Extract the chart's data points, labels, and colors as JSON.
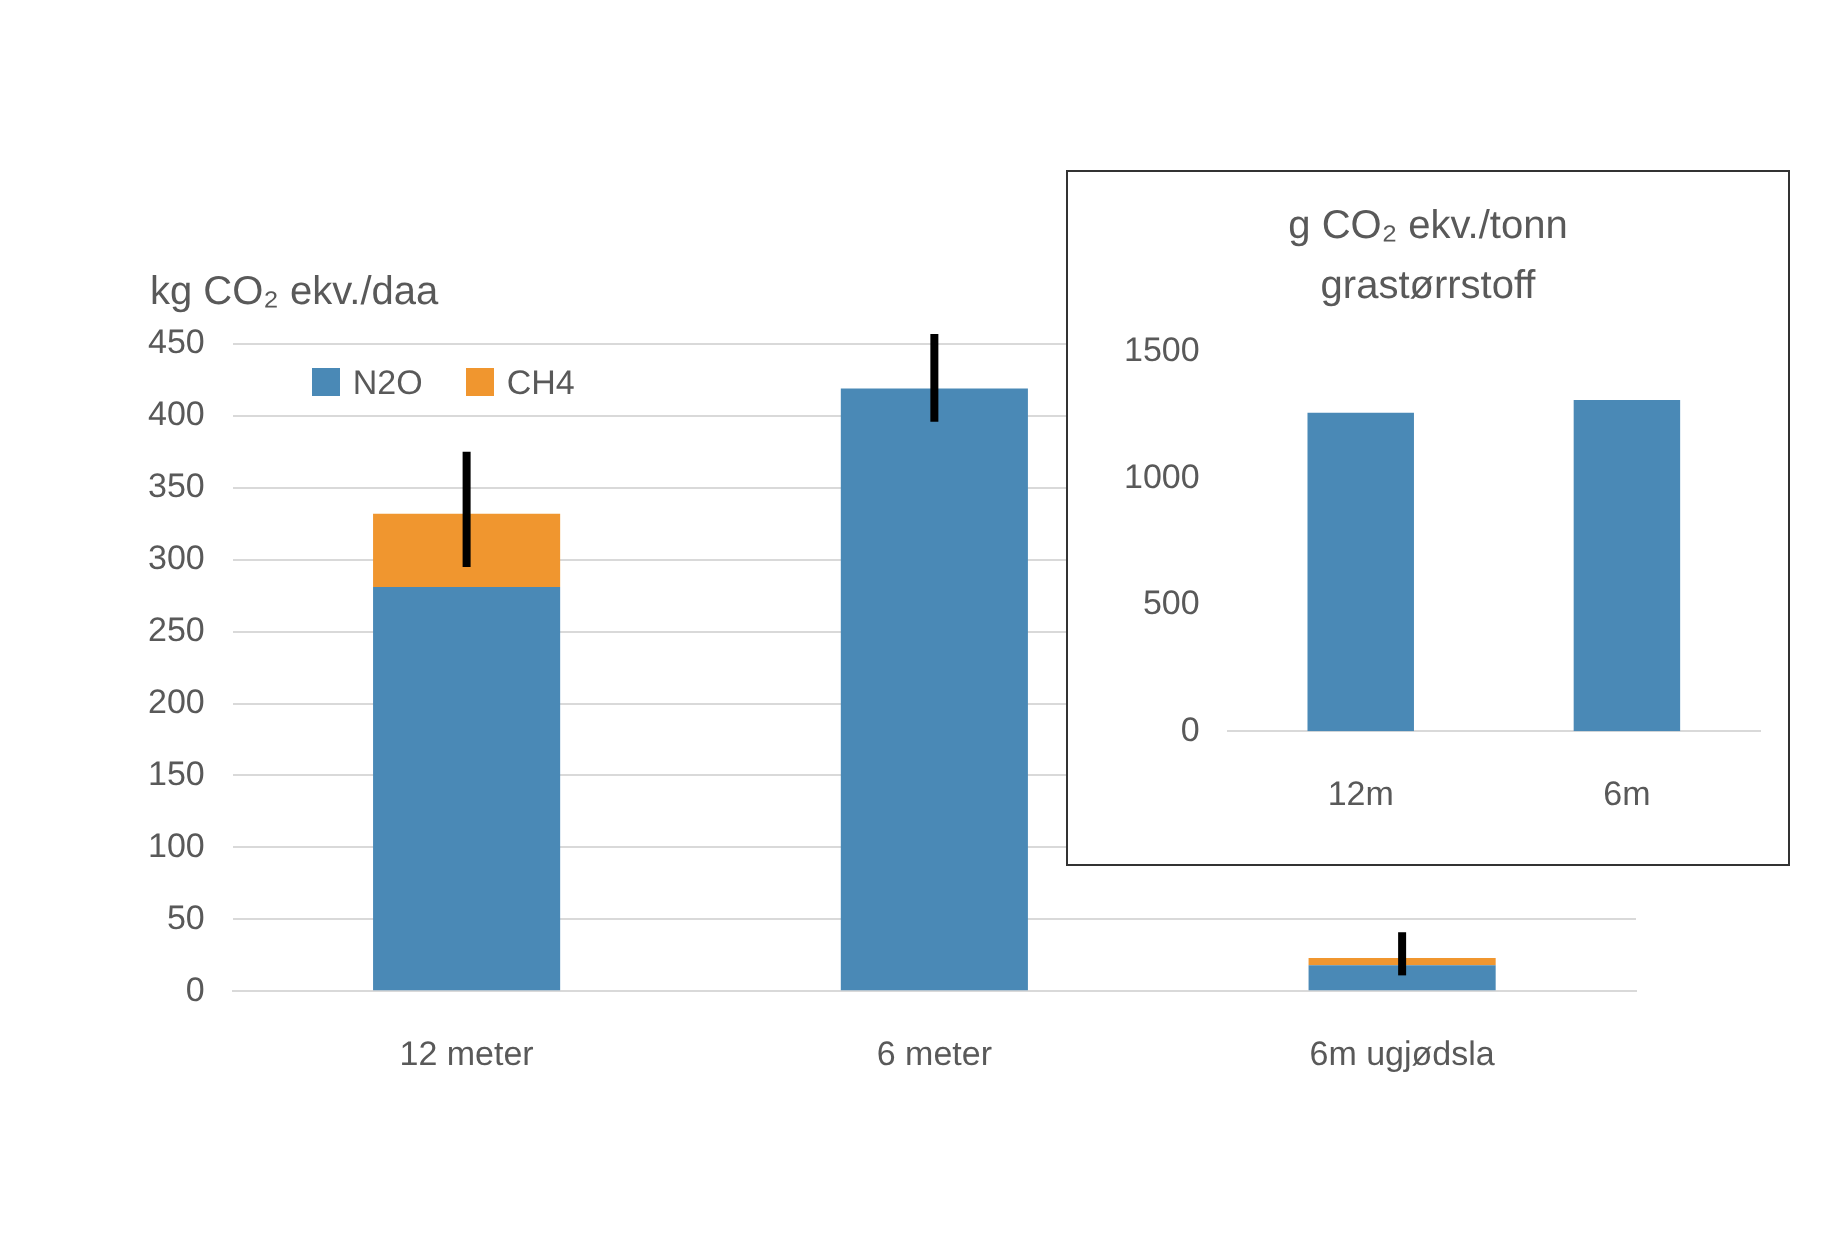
{
  "chart_data": [
    {
      "type": "bar",
      "ylabel": "kg CO₂ ekv./daa",
      "categories": [
        "12 meter",
        "6 meter",
        "6m ugjødsla"
      ],
      "stacked": true,
      "series": [
        {
          "name": "N2O",
          "color": "#4a89b6",
          "values": [
            281,
            419,
            18
          ]
        },
        {
          "name": "CH4",
          "color": "#f0962f",
          "values": [
            51,
            0,
            5
          ],
          "errors": [
            [
              295,
              375
            ],
            [
              396,
              457
            ],
            [
              11,
              41
            ]
          ]
        }
      ],
      "ylim": [
        0,
        450
      ],
      "yticks": [
        0,
        50,
        100,
        150,
        200,
        250,
        300,
        350,
        400,
        450
      ],
      "grid": "y",
      "legend": "top left"
    },
    {
      "type": "bar",
      "ylabel": "g CO₂ ekv./tonn grastørrstoff",
      "categories": [
        "12m",
        "6m"
      ],
      "series": [
        {
          "color": "#4a89b6",
          "values": [
            1260,
            1310
          ]
        }
      ],
      "ylim": [
        0,
        1500
      ],
      "yticks": [
        0,
        500,
        1000,
        1500
      ]
    }
  ]
}
